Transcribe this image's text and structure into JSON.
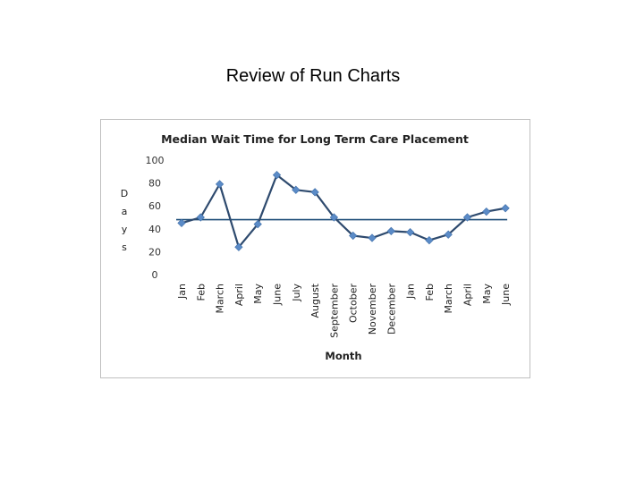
{
  "slide": {
    "title": "Review of Run Charts"
  },
  "chart_data": {
    "type": "line",
    "title": "Median Wait Time for Long Term Care Placement",
    "xlabel": "Month",
    "ylabel": "Days",
    "ylim": [
      0,
      100
    ],
    "yticks": [
      0,
      20,
      40,
      60,
      80,
      100
    ],
    "grid": false,
    "categories": [
      "Jan",
      "Feb",
      "March",
      "April",
      "May",
      "June",
      "July",
      "August",
      "September",
      "October",
      "November",
      "December",
      "Jan",
      "Feb",
      "March",
      "April",
      "May",
      "June"
    ],
    "series": [
      {
        "values": [
          45,
          50,
          79,
          24,
          44,
          87,
          74,
          72,
          50,
          34,
          32,
          38,
          37,
          30,
          35,
          50,
          55,
          58
        ]
      }
    ],
    "median": 48,
    "colors": {
      "series": "#2E4A6E",
      "marker": "#5B8BC7",
      "median": "#1F4E79"
    }
  }
}
